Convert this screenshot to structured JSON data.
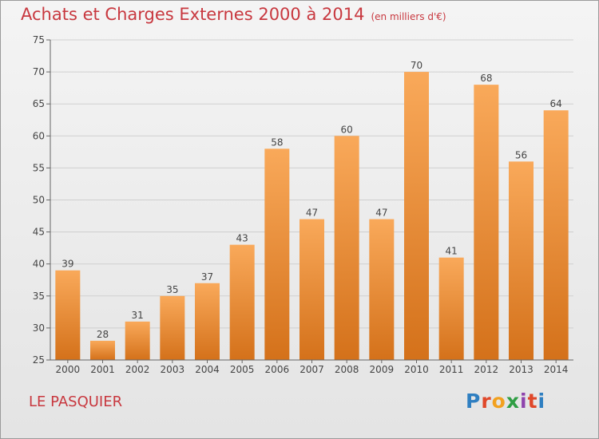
{
  "header": {
    "title": "Achats et Charges Externes 2000 à 2014",
    "subtitle": "(en milliers d'€)"
  },
  "footer": {
    "place_name": "LE PASQUIER",
    "logo_text": "Proxiti"
  },
  "colors": {
    "bar_top": "#f9a95a",
    "bar_bottom": "#d4711a",
    "title": "#c8383f"
  },
  "chart_data": {
    "type": "bar",
    "title": "Achats et Charges Externes 2000 à 2014",
    "subtitle": "(en milliers d'€)",
    "xlabel": "",
    "ylabel": "",
    "categories": [
      "2000",
      "2001",
      "2002",
      "2003",
      "2004",
      "2005",
      "2006",
      "2007",
      "2008",
      "2009",
      "2010",
      "2011",
      "2012",
      "2013",
      "2014"
    ],
    "values": [
      39,
      28,
      31,
      35,
      37,
      43,
      58,
      47,
      60,
      47,
      70,
      41,
      68,
      56,
      64
    ],
    "ylim": [
      25,
      75
    ],
    "yticks": [
      25,
      30,
      35,
      40,
      45,
      50,
      55,
      60,
      65,
      70,
      75
    ],
    "grid": true,
    "legend": "none"
  }
}
